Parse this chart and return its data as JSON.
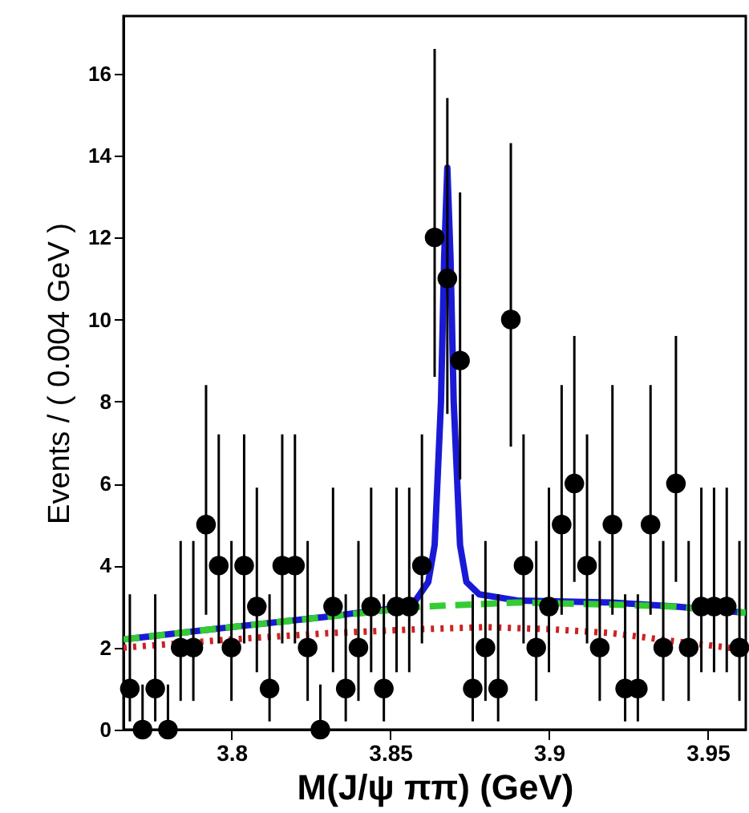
{
  "chart_data": {
    "type": "scatter",
    "xlabel": "M(J/ψ ππ) (GeV)",
    "ylabel": "Events / ( 0.004 GeV )",
    "x": [
      3.768,
      3.772,
      3.776,
      3.78,
      3.784,
      3.788,
      3.792,
      3.796,
      3.8,
      3.804,
      3.808,
      3.812,
      3.816,
      3.82,
      3.824,
      3.828,
      3.832,
      3.836,
      3.84,
      3.844,
      3.848,
      3.852,
      3.856,
      3.86,
      3.864,
      3.868,
      3.872,
      3.876,
      3.88,
      3.884,
      3.888,
      3.892,
      3.896,
      3.9,
      3.904,
      3.908,
      3.912,
      3.916,
      3.92,
      3.924,
      3.928,
      3.932,
      3.936,
      3.94,
      3.944,
      3.948,
      3.952,
      3.956,
      3.96
    ],
    "xlim": [
      3.766,
      3.962
    ],
    "xticks": [
      3.8,
      3.85,
      3.9,
      3.95
    ],
    "ylim": [
      0,
      17.4
    ],
    "yticks": [
      0,
      2,
      4,
      6,
      8,
      10,
      12,
      14,
      16
    ],
    "grid": false,
    "series": [
      {
        "type": "line",
        "color": "#1a1ad6",
        "line_style": "solid",
        "x": [
          3.766,
          3.8,
          3.83,
          3.85,
          3.858,
          3.862,
          3.864,
          3.866,
          3.867,
          3.868,
          3.869,
          3.87,
          3.872,
          3.874,
          3.878,
          3.89,
          3.92,
          3.94,
          3.962
        ],
        "values": [
          2.2,
          2.5,
          2.75,
          2.95,
          3.15,
          3.6,
          4.5,
          8,
          11.5,
          13.7,
          11.5,
          8,
          4.5,
          3.6,
          3.3,
          3.15,
          3.1,
          3.0,
          2.85
        ]
      },
      {
        "type": "line",
        "color": "#33cc33",
        "line_style": "dashed",
        "x": [
          3.766,
          3.8,
          3.83,
          3.86,
          3.89,
          3.92,
          3.94,
          3.962
        ],
        "values": [
          2.2,
          2.5,
          2.75,
          3.0,
          3.1,
          3.05,
          3.0,
          2.85
        ]
      },
      {
        "type": "line",
        "color": "#cc2222",
        "line_style": "dotted",
        "x": [
          3.766,
          3.8,
          3.83,
          3.86,
          3.88,
          3.9,
          3.92,
          3.94,
          3.962
        ],
        "values": [
          2.0,
          2.2,
          2.35,
          2.45,
          2.5,
          2.45,
          2.35,
          2.15,
          1.95
        ]
      },
      {
        "color": "#000000",
        "marker": "circle",
        "values": [
          1,
          0,
          1,
          0,
          2,
          2,
          5,
          4,
          2,
          4,
          3,
          1,
          4,
          4,
          2,
          0,
          3,
          1,
          2,
          3,
          1,
          3,
          3,
          4,
          12,
          11,
          9,
          1,
          2,
          1,
          10,
          4,
          2,
          3,
          5,
          6,
          4,
          2,
          5,
          1,
          1,
          5,
          2,
          6,
          2,
          3,
          3,
          3,
          2
        ],
        "errors": [
          [
            0.2,
            3.3
          ],
          [
            0,
            1.1
          ],
          [
            0.2,
            3.3
          ],
          [
            0,
            1.1
          ],
          [
            0.7,
            4.6
          ],
          [
            0.7,
            4.6
          ],
          [
            2.8,
            8.4
          ],
          [
            2.1,
            7.2
          ],
          [
            0.7,
            4.6
          ],
          [
            2.1,
            7.2
          ],
          [
            1.4,
            5.9
          ],
          [
            0.2,
            3.3
          ],
          [
            2.1,
            7.2
          ],
          [
            2.1,
            7.2
          ],
          [
            0.7,
            4.6
          ],
          [
            0,
            1.1
          ],
          [
            1.4,
            5.9
          ],
          [
            0.2,
            3.3
          ],
          [
            0.7,
            4.6
          ],
          [
            1.4,
            5.9
          ],
          [
            0.2,
            3.3
          ],
          [
            1.4,
            5.9
          ],
          [
            1.4,
            5.9
          ],
          [
            2.1,
            7.2
          ],
          [
            8.6,
            16.6
          ],
          [
            7.7,
            15.4
          ],
          [
            6.1,
            13.1
          ],
          [
            0.2,
            3.3
          ],
          [
            0.7,
            4.6
          ],
          [
            0.2,
            3.3
          ],
          [
            6.9,
            14.3
          ],
          [
            2.1,
            7.2
          ],
          [
            0.7,
            4.6
          ],
          [
            1.4,
            5.9
          ],
          [
            2.8,
            8.4
          ],
          [
            3.6,
            9.6
          ],
          [
            2.1,
            7.2
          ],
          [
            0.7,
            4.6
          ],
          [
            2.8,
            8.4
          ],
          [
            0.2,
            3.3
          ],
          [
            0.2,
            3.3
          ],
          [
            2.8,
            8.4
          ],
          [
            0.7,
            4.6
          ],
          [
            3.6,
            9.6
          ],
          [
            0.7,
            4.6
          ],
          [
            1.4,
            5.9
          ],
          [
            1.4,
            5.9
          ],
          [
            1.4,
            5.9
          ],
          [
            0.7,
            4.6
          ]
        ]
      }
    ]
  }
}
